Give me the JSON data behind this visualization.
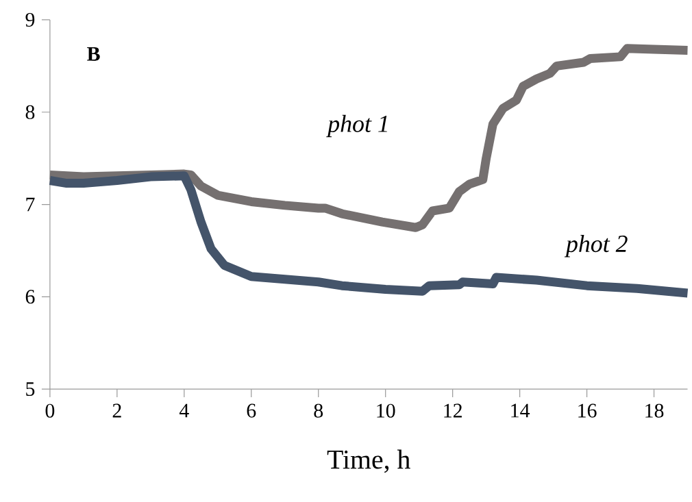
{
  "chart_data": {
    "type": "line",
    "xlabel": "Time, h",
    "annotations": [
      "B"
    ],
    "xlim": [
      0,
      19
    ],
    "ylim": [
      5,
      9
    ],
    "xticks": [
      0,
      2,
      4,
      6,
      8,
      10,
      12,
      14,
      16,
      18
    ],
    "yticks": [
      5,
      6,
      7,
      8,
      9
    ],
    "grid": false,
    "legend": false,
    "marker": "none",
    "line_style": "solid",
    "series": [
      {
        "name": "phot 1",
        "color": "#757070",
        "x": [
          0,
          1,
          2,
          3,
          4,
          4.2,
          4.5,
          5,
          6,
          7,
          8,
          8.2,
          8.7,
          9.9,
          10.9,
          11.1,
          11.4,
          11.9,
          12.2,
          12.5,
          12.9,
          13.0,
          13.2,
          13.5,
          13.9,
          14.1,
          14.5,
          14.9,
          15.1,
          15.9,
          16.1,
          17.0,
          17.2,
          18,
          19
        ],
        "values": [
          7.32,
          7.3,
          7.31,
          7.32,
          7.33,
          7.32,
          7.2,
          7.1,
          7.03,
          6.99,
          6.96,
          6.96,
          6.9,
          6.81,
          6.75,
          6.78,
          6.93,
          6.96,
          7.14,
          7.22,
          7.27,
          7.5,
          7.87,
          8.04,
          8.13,
          8.28,
          8.36,
          8.42,
          8.5,
          8.54,
          8.58,
          8.6,
          8.69,
          8.68,
          8.67
        ]
      },
      {
        "name": "phot 2",
        "color": "#44546a",
        "x": [
          0,
          0.5,
          1,
          2,
          3,
          4,
          4.2,
          4.5,
          4.8,
          5.2,
          6,
          7,
          8,
          8.7,
          10,
          11.1,
          11.3,
          12.2,
          12.3,
          13.2,
          13.3,
          14.5,
          16,
          17.5,
          19
        ],
        "values": [
          7.26,
          7.23,
          7.23,
          7.26,
          7.3,
          7.31,
          7.16,
          6.81,
          6.52,
          6.34,
          6.22,
          6.19,
          6.16,
          6.12,
          6.08,
          6.06,
          6.12,
          6.13,
          6.16,
          6.14,
          6.21,
          6.18,
          6.12,
          6.09,
          6.04
        ]
      }
    ]
  }
}
